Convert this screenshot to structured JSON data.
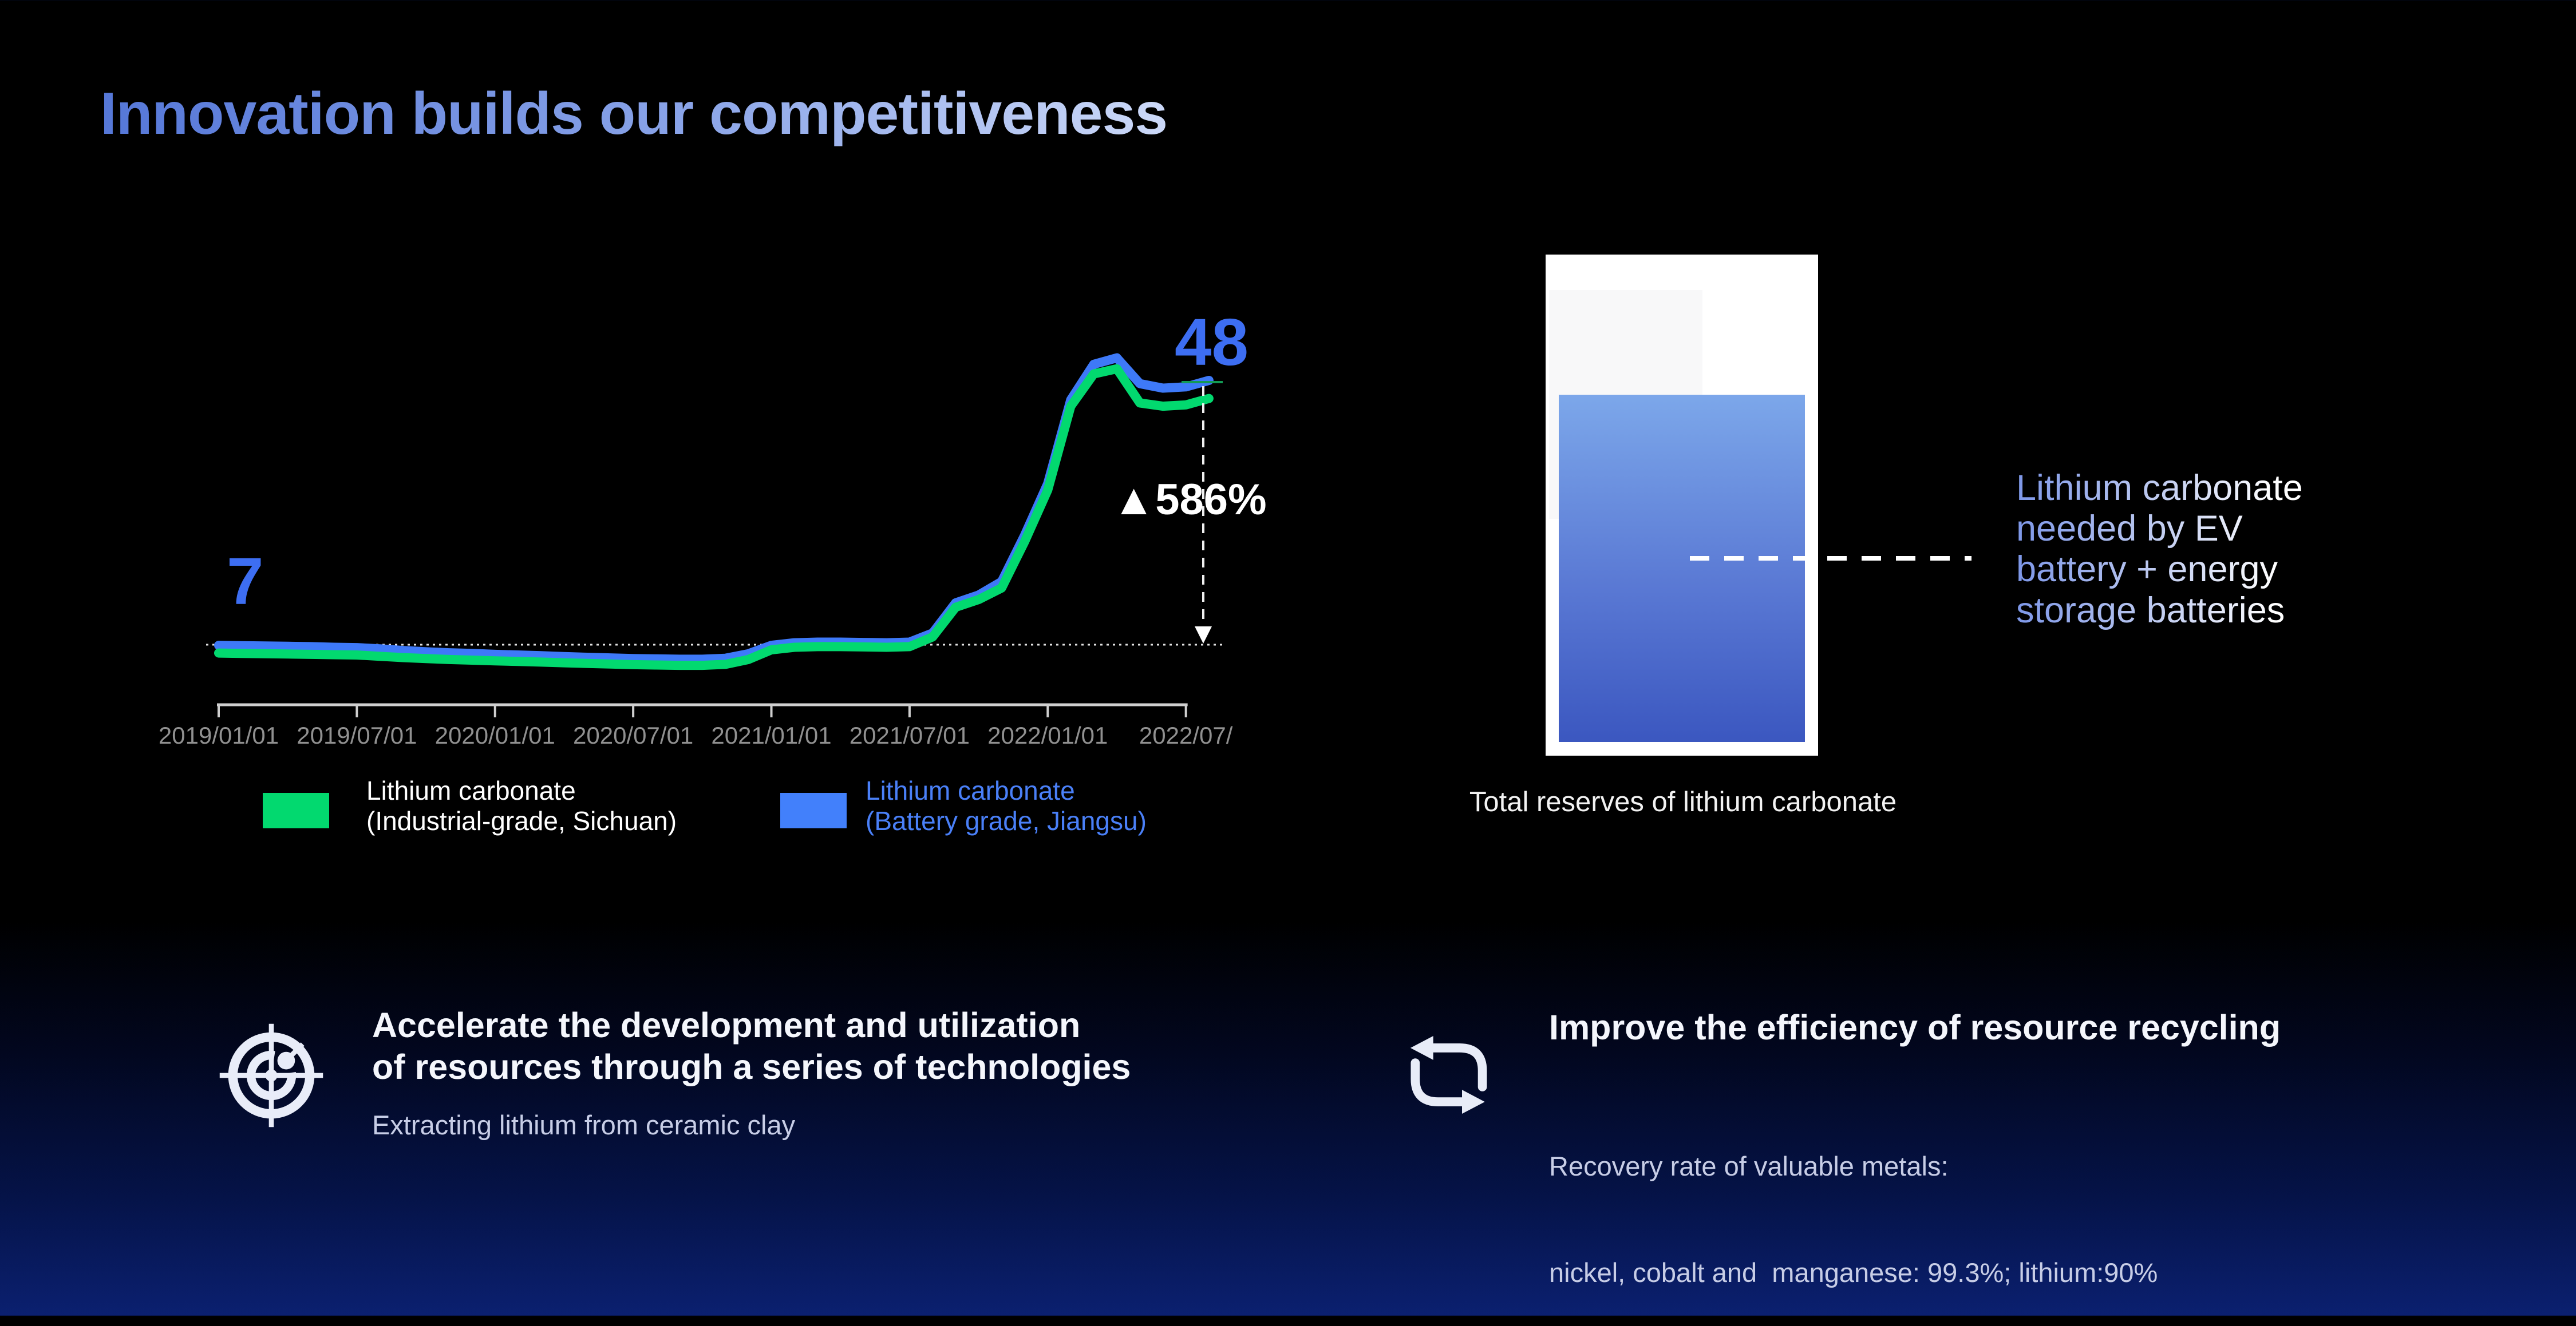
{
  "slide": {
    "title": "Innovation builds our competitiveness"
  },
  "chart_data": {
    "type": "line",
    "x": [
      "2019/01",
      "2019/02",
      "2019/03",
      "2019/04",
      "2019/05",
      "2019/06",
      "2019/07",
      "2019/08",
      "2019/09",
      "2019/10",
      "2019/11",
      "2019/12",
      "2020/01",
      "2020/02",
      "2020/03",
      "2020/04",
      "2020/05",
      "2020/06",
      "2020/07",
      "2020/08",
      "2020/09",
      "2020/10",
      "2020/11",
      "2020/12",
      "2021/01",
      "2021/02",
      "2021/03",
      "2021/04",
      "2021/05",
      "2021/06",
      "2021/07",
      "2021/08",
      "2021/09",
      "2021/10",
      "2021/11",
      "2021/12",
      "2022/01",
      "2022/02",
      "2022/03",
      "2022/04",
      "2022/05",
      "2022/06",
      "2022/07",
      "2022/08"
    ],
    "x_ticks": [
      "2019/01/01",
      "2019/07/01",
      "2020/01/01",
      "2020/07/01",
      "2021/01/01",
      "2021/07/01",
      "2022/01/01",
      "2022/07/"
    ],
    "series": [
      {
        "name": "Lithium carbonate (Battery grade, Jiangsu)",
        "color": "#3e79f8",
        "values": [
          6.9,
          6.85,
          6.8,
          6.75,
          6.7,
          6.6,
          6.55,
          6.35,
          6.1,
          5.9,
          5.75,
          5.65,
          5.5,
          5.4,
          5.3,
          5.15,
          5.05,
          4.95,
          4.85,
          4.8,
          4.75,
          4.75,
          4.9,
          5.6,
          6.9,
          7.3,
          7.4,
          7.4,
          7.35,
          7.3,
          7.4,
          8.8,
          13.5,
          14.7,
          16.8,
          24.0,
          32.0,
          45.0,
          50.5,
          51.5,
          47.5,
          46.8,
          47.0,
          48.0
        ]
      },
      {
        "name": "Lithium carbonate (Industrial-grade, Sichuan)",
        "color": "#02d96f",
        "values": [
          5.7,
          5.65,
          5.6,
          5.55,
          5.5,
          5.45,
          5.4,
          5.2,
          5.0,
          4.85,
          4.7,
          4.6,
          4.5,
          4.4,
          4.3,
          4.2,
          4.1,
          4.0,
          3.9,
          3.85,
          3.8,
          3.8,
          3.95,
          4.7,
          6.2,
          6.6,
          6.7,
          6.7,
          6.65,
          6.6,
          6.7,
          8.2,
          12.8,
          14.0,
          15.8,
          23.0,
          31.0,
          44.0,
          49.0,
          49.8,
          44.5,
          44.0,
          44.2,
          45.2
        ]
      }
    ],
    "annotations": {
      "start_label": "7",
      "end_label": "48",
      "change_label": "▲586%",
      "start_value": 7,
      "end_value": 48
    },
    "ylim": [
      0,
      55
    ],
    "grid": false,
    "legend_position": "bottom"
  },
  "legend": [
    {
      "line1": "Lithium carbonate",
      "line2": "(Industrial-grade, Sichuan)",
      "swatch_color": "#02d96f",
      "text_color": "#ffffff"
    },
    {
      "line1": "Lithium carbonate",
      "line2": "(Battery grade, Jiangsu)",
      "swatch_color": "#4280fb",
      "text_color": "#4a80f8"
    }
  ],
  "reserve_panel": {
    "caption": "Total reserves of lithium carbonate",
    "annotation_lines": [
      "Lithium carbonate",
      "needed by EV",
      "battery + energy",
      "storage batteries"
    ]
  },
  "initiatives": {
    "left": {
      "icon": "radar-icon",
      "heading_line1": "Accelerate the development and utilization",
      "heading_line2": "of resources through a series of technologies",
      "subtext": "Extracting lithium from ceramic clay"
    },
    "right": {
      "icon": "recycle-icon",
      "heading": "Improve the efficiency of resource recycling",
      "subtext_line1": "Recovery rate of valuable metals:",
      "subtext_line2": "nickel, cobalt and  manganese: 99.3%; lithium:90%"
    }
  },
  "colors": {
    "accent_blue": "#3e79f8",
    "accent_green": "#02d96f",
    "label_blue": "#3d6ef2",
    "axis_gray": "#909090"
  }
}
